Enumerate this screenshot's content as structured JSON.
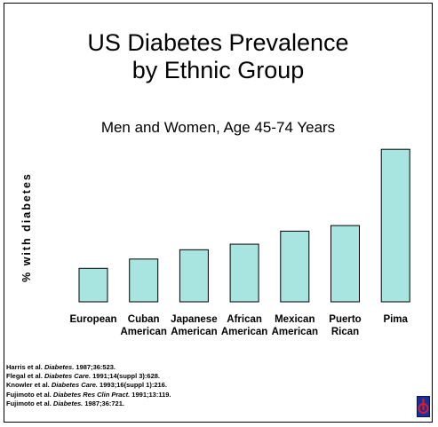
{
  "title_lines": [
    "US Diabetes Prevalence",
    "by Ethnic Group"
  ],
  "subtitle": "Men and Women, Age 45-74 Years",
  "chart_data": {
    "type": "bar",
    "ylabel": "% with diabetes",
    "categories": [
      [
        "European"
      ],
      [
        "Cuban",
        "American"
      ],
      [
        "Japanese",
        "American"
      ],
      [
        "African",
        "American"
      ],
      [
        "Mexican",
        "American"
      ],
      [
        "Puerto",
        "Rican"
      ],
      [
        "Pima"
      ]
    ],
    "values": [
      9,
      11.5,
      14,
      15.5,
      19,
      20.5,
      41
    ],
    "ylim": [
      0,
      42
    ],
    "bar_color": "#a8e4e0",
    "bar_stroke": "#000000",
    "grid": false
  },
  "references": [
    {
      "authors": "Harris et al.",
      "journal": "Diabetes.",
      "rest": "1987;36:523."
    },
    {
      "authors": "Flegal et al.",
      "journal": "Diabetes Care.",
      "rest": "1991;14(suppl 3):628."
    },
    {
      "authors": "Knowler et al.",
      "journal": "Diabetes Care.",
      "rest": "1993;16(suppl 1):216."
    },
    {
      "authors": "Fujimoto et al.",
      "journal": "Diabetes Res Clin Pract.",
      "rest": "1991;13:119."
    },
    {
      "authors": "Fujimoto et al.",
      "journal": "Diabetes.",
      "rest": "1987;36:721."
    }
  ],
  "logo_icon": "diabetes-emblem-icon"
}
